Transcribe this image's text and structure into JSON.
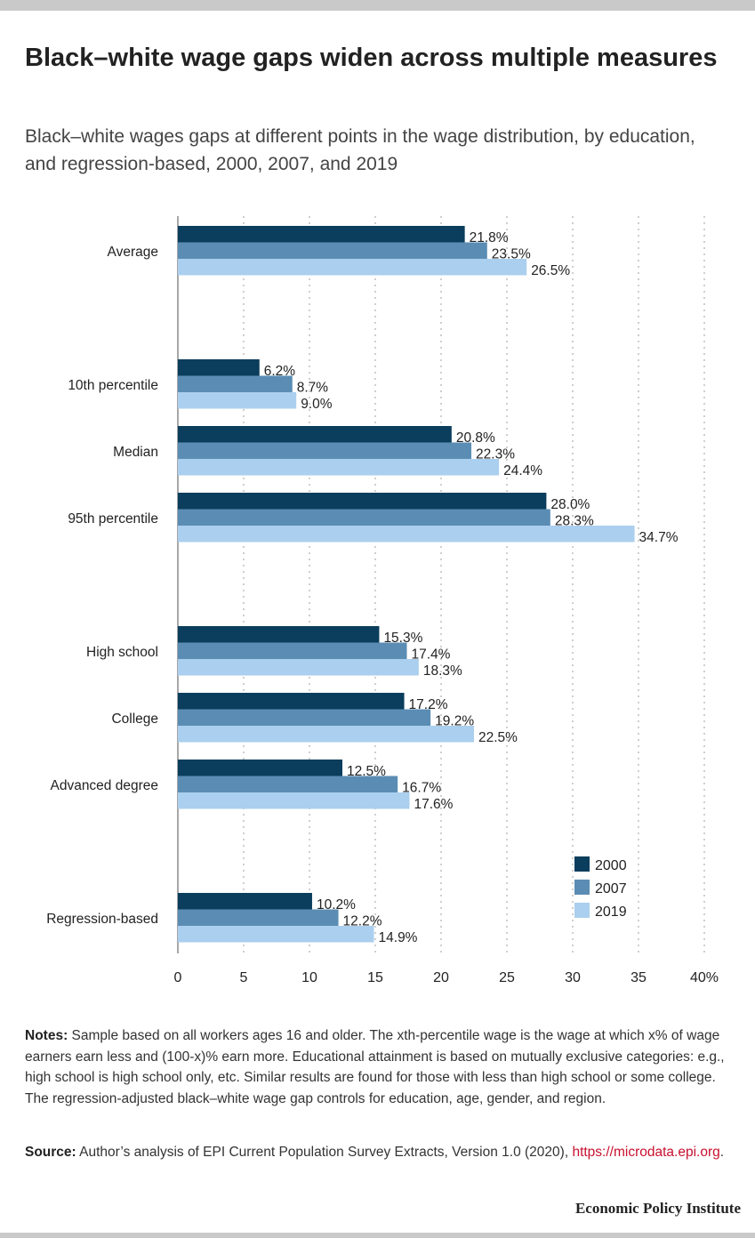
{
  "title": "Black–white wage gaps widen across multiple measures",
  "subtitle": "Black–white wages gaps at different points in the wage distribution, by education, and regression-based, 2000, 2007, and 2019",
  "notes": {
    "label": "Notes:",
    "text": "Sample based on all workers ages 16 and older. The xth-percentile wage is the wage at which x% of wage earners earn less and (100-x)% earn more. Educational attainment is based on mutually exclusive categories: e.g., high school is high school only, etc. Similar results are found for those with less than high school or some college. The regression-adjusted black–white wage gap controls for education, age, gender, and region."
  },
  "source": {
    "label": "Source:",
    "text": "Author’s analysis of EPI Current Population Survey Extracts, Version 1.0 (2020),",
    "link": "https://microdata.epi.org"
  },
  "branding": "Economic Policy Institute",
  "colors": {
    "2000": "#0b3d5c",
    "2007": "#5b8db4",
    "2019": "#abcfee"
  },
  "chart_data": {
    "type": "bar",
    "orientation": "horizontal",
    "categories": [
      "Average",
      "",
      "10th percentile",
      "Median",
      "95th percentile",
      "",
      "High school",
      "College",
      "Advanced degree",
      "",
      "Regression-based"
    ],
    "series": [
      {
        "name": "2000",
        "color": "#0b3d5c",
        "values": [
          21.8,
          null,
          6.2,
          20.8,
          28.0,
          null,
          15.3,
          17.2,
          12.5,
          null,
          10.2
        ]
      },
      {
        "name": "2007",
        "color": "#5b8db4",
        "values": [
          23.5,
          null,
          8.7,
          22.3,
          28.3,
          null,
          17.4,
          19.2,
          16.7,
          null,
          12.2
        ]
      },
      {
        "name": "2019",
        "color": "#abcfee",
        "values": [
          26.5,
          null,
          9.0,
          24.4,
          34.7,
          null,
          18.3,
          22.5,
          17.6,
          null,
          14.9
        ]
      }
    ],
    "data_labels": [
      [
        "21.8%",
        "23.5%",
        "26.5%"
      ],
      null,
      [
        "6.2%",
        "8.7%",
        "9.0%"
      ],
      [
        "20.8%",
        "22.3%",
        "24.4%"
      ],
      [
        "28.0%",
        "28.3%",
        "34.7%"
      ],
      null,
      [
        "15.3%",
        "17.4%",
        "18.3%"
      ],
      [
        "17.2%",
        "19.2%",
        "22.5%"
      ],
      [
        "12.5%",
        "16.7%",
        "17.6%"
      ],
      null,
      [
        "10.2%",
        "12.2%",
        "14.9%"
      ]
    ],
    "x_ticks": [
      0,
      5,
      10,
      15,
      20,
      25,
      30,
      35,
      40
    ],
    "x_tick_labels": [
      "0",
      "5",
      "10",
      "15",
      "20",
      "25",
      "30",
      "35",
      "40%"
    ],
    "xlim": [
      0,
      40
    ],
    "xlabel": "",
    "ylabel": "",
    "grid": "vertical dotted",
    "legend": {
      "position": "bottom-right",
      "entries": [
        "2000",
        "2007",
        "2019"
      ]
    }
  }
}
